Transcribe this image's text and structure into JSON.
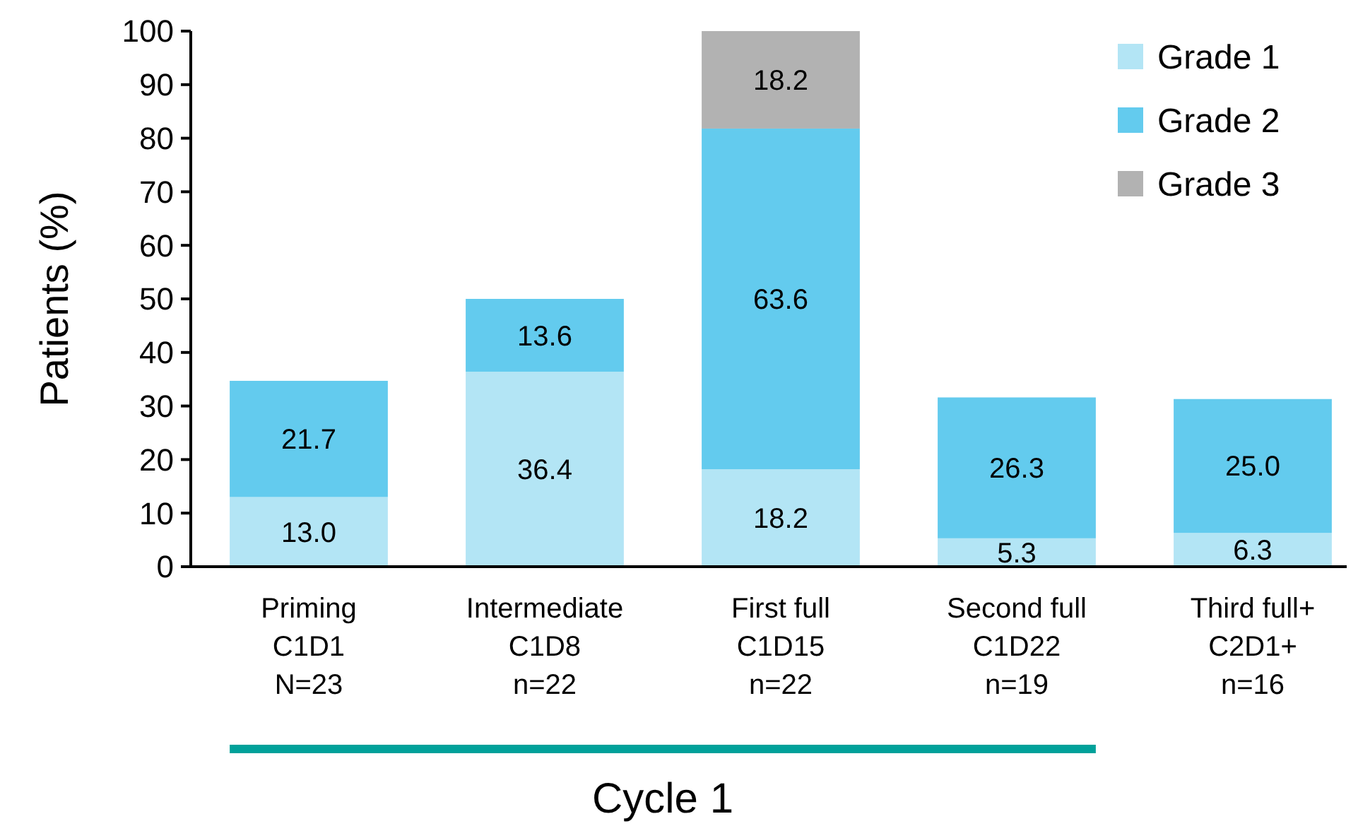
{
  "chart_data": {
    "type": "bar",
    "stacked": true,
    "categories": [
      "Priming\nC1D1\nN=23",
      "Intermediate\nC1D8\nn=22",
      "First full\nC1D15\nn=22",
      "Second full\nC1D22\nn=19",
      "Third full+\nC2D1+\nn=16"
    ],
    "series": [
      {
        "name": "Grade 1",
        "color": "#b3e5f5",
        "values": [
          13.0,
          36.4,
          18.2,
          5.3,
          6.3
        ],
        "value_labels": [
          "13.0",
          "36.4",
          "18.2",
          "5.3",
          "6.3"
        ]
      },
      {
        "name": "Grade 2",
        "color": "#63cbee",
        "values": [
          21.7,
          13.6,
          63.6,
          26.3,
          25.0
        ],
        "value_labels": [
          "21.7",
          "13.6",
          "63.6",
          "26.3",
          "25.0"
        ]
      },
      {
        "name": "Grade 3",
        "color": "#b2b2b2",
        "values": [
          null,
          null,
          18.2,
          null,
          null
        ],
        "value_labels": [
          null,
          null,
          "18.2",
          null,
          null
        ]
      }
    ],
    "ylabel": "Patients (%)",
    "ylim": [
      0,
      100
    ],
    "yticks": [
      0,
      10,
      20,
      30,
      40,
      50,
      60,
      70,
      80,
      90,
      100
    ],
    "legend": "top right",
    "grid": false,
    "annotations": [
      "Cycle 1"
    ]
  }
}
